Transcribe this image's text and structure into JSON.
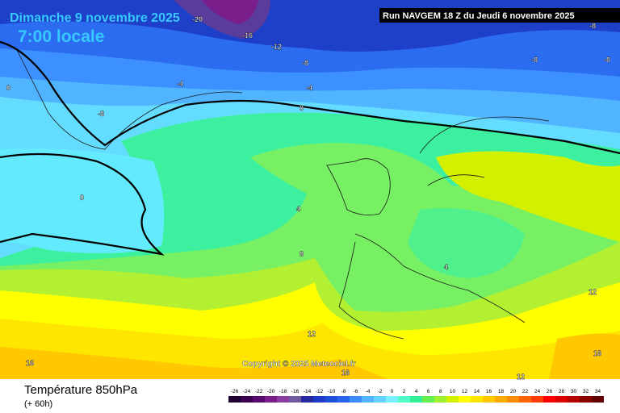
{
  "header": {
    "date": "Dimanche 9 novembre 2025",
    "time": "7:00 locale",
    "run": "Run NAVGEM 18 Z du Jeudi 6 novembre 2025"
  },
  "copyright": "Copyright © 2025 Meteociel.fr",
  "footer": {
    "title": "Température 850hPa",
    "lead": "(+ 60h)"
  },
  "contour_labels": [
    -20,
    -16,
    -12,
    -8,
    -4,
    -8,
    0,
    -4,
    0,
    0,
    4,
    8,
    4,
    12,
    12,
    16,
    16,
    16,
    12,
    -8,
    -8,
    -8
  ],
  "legend": {
    "values": [
      -26,
      -24,
      -22,
      -20,
      -18,
      -16,
      -14,
      -12,
      -10,
      -8,
      -6,
      -4,
      -2,
      0,
      2,
      4,
      6,
      8,
      10,
      12,
      14,
      16,
      18,
      20,
      22,
      24,
      26,
      28,
      30,
      32,
      34
    ],
    "colors": [
      "#1e0032",
      "#3c0050",
      "#5a0a6e",
      "#7a1e8c",
      "#8c3ca0",
      "#6e5aa0",
      "#2828a0",
      "#1e3cc8",
      "#1e50dc",
      "#2864f0",
      "#3c8cff",
      "#50b4ff",
      "#64d2ff",
      "#78f0ff",
      "#50ffc8",
      "#32f096",
      "#64f050",
      "#a0f032",
      "#d2f000",
      "#ffff00",
      "#ffe600",
      "#ffc800",
      "#ffaa00",
      "#ff8c00",
      "#ff6400",
      "#ff3c00",
      "#ff0000",
      "#dc0000",
      "#b40000",
      "#8c0000",
      "#640000"
    ]
  }
}
